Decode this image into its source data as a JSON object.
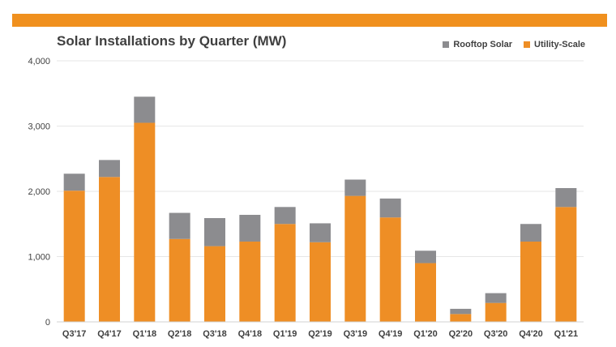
{
  "colors": {
    "accent_bar": "#F0901E",
    "utility": "#EE8E25",
    "rooftop": "#8C8C8F",
    "gridline": "#E6E6E6",
    "text": "#404040"
  },
  "chart_data": {
    "type": "bar",
    "stacked": true,
    "title": "Solar Installations by Quarter (MW)",
    "xlabel": "",
    "ylabel": "",
    "categories": [
      "Q3'17",
      "Q4'17",
      "Q1'18",
      "Q2'18",
      "Q3'18",
      "Q4'18",
      "Q1'19",
      "Q2'19",
      "Q3'19",
      "Q4'19",
      "Q1'20",
      "Q2'20",
      "Q3'20",
      "Q4'20",
      "Q1'21"
    ],
    "series": [
      {
        "name": "Utility-Scale",
        "color": "#EE8E25",
        "values": [
          2010,
          2220,
          3050,
          1270,
          1160,
          1230,
          1500,
          1220,
          1930,
          1600,
          900,
          120,
          290,
          1230,
          1760
        ]
      },
      {
        "name": "Rooftop Solar",
        "color": "#8C8C8F",
        "values": [
          260,
          260,
          400,
          400,
          430,
          410,
          260,
          290,
          250,
          290,
          190,
          80,
          150,
          270,
          290
        ]
      }
    ],
    "ylim": [
      0,
      4000
    ],
    "yticks": [
      0,
      1000,
      2000,
      3000,
      4000
    ],
    "ytick_labels": [
      "0",
      "1,000",
      "2,000",
      "3,000",
      "4,000"
    ],
    "grid": true,
    "legend": {
      "position": "top-right",
      "order": [
        "Rooftop Solar",
        "Utility-Scale"
      ]
    }
  }
}
